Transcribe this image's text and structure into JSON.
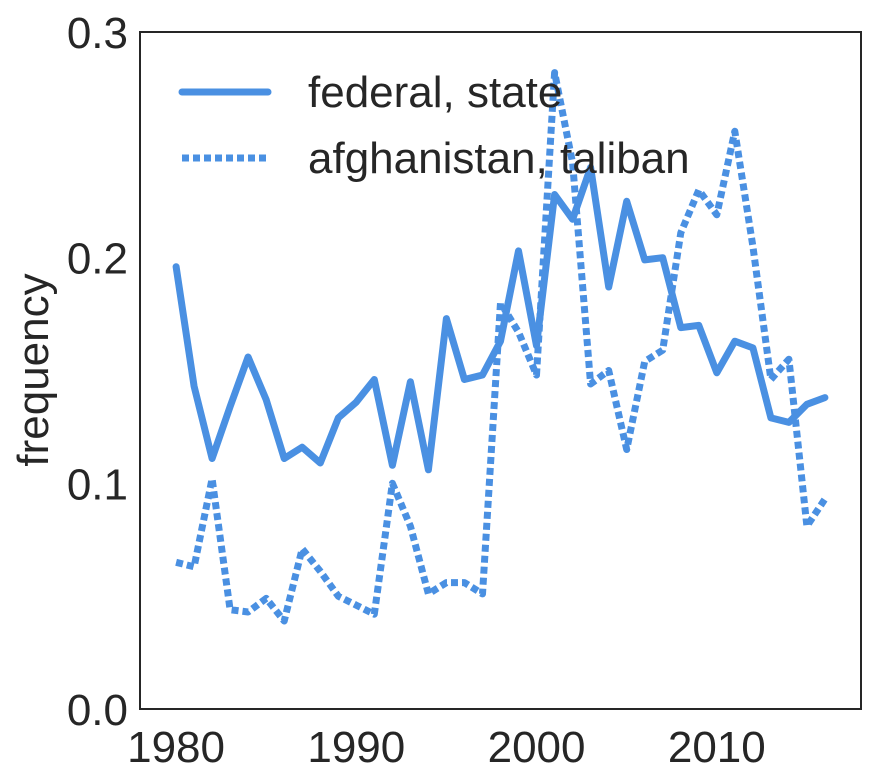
{
  "chart_data": {
    "type": "line",
    "title": "",
    "xlabel": "",
    "ylabel": "frequency",
    "xlim": [
      1978,
      2018
    ],
    "ylim": [
      0.0,
      0.3
    ],
    "xticks": [
      1980,
      1990,
      2000,
      2010
    ],
    "yticks": [
      0.0,
      0.1,
      0.2,
      0.3
    ],
    "xtick_labels": [
      "1980",
      "1990",
      "2000",
      "2010"
    ],
    "ytick_labels": [
      "0.0",
      "0.1",
      "0.2",
      "0.3"
    ],
    "grid": false,
    "legend_position": "top-left",
    "series": [
      {
        "name": "federal, state",
        "style": "solid",
        "color": "#4a90e2",
        "x": [
          1980,
          1981,
          1982,
          1983,
          1984,
          1985,
          1986,
          1987,
          1988,
          1989,
          1990,
          1991,
          1992,
          1993,
          1994,
          1995,
          1996,
          1997,
          1998,
          1999,
          2000,
          2001,
          2002,
          2003,
          2004,
          2005,
          2006,
          2007,
          2008,
          2009,
          2010,
          2011,
          2012,
          2013,
          2014,
          2015,
          2016
        ],
        "y": [
          0.196,
          0.143,
          0.111,
          0.134,
          0.156,
          0.137,
          0.111,
          0.116,
          0.109,
          0.129,
          0.136,
          0.146,
          0.108,
          0.145,
          0.106,
          0.173,
          0.146,
          0.148,
          0.163,
          0.203,
          0.161,
          0.228,
          0.217,
          0.24,
          0.187,
          0.225,
          0.199,
          0.2,
          0.169,
          0.17,
          0.149,
          0.163,
          0.16,
          0.129,
          0.127,
          0.135,
          0.138
        ]
      },
      {
        "name": "afghanistan, taliban",
        "style": "dotted",
        "color": "#4a90e2",
        "x": [
          1980,
          1981,
          1982,
          1983,
          1984,
          1985,
          1986,
          1987,
          1988,
          1989,
          1990,
          1991,
          1992,
          1993,
          1994,
          1995,
          1996,
          1997,
          1998,
          1999,
          2000,
          2001,
          2002,
          2003,
          2004,
          2005,
          2006,
          2007,
          2008,
          2009,
          2010,
          2011,
          2012,
          2013,
          2014,
          2015,
          2016
        ],
        "y": [
          0.065,
          0.063,
          0.102,
          0.044,
          0.043,
          0.049,
          0.039,
          0.071,
          0.061,
          0.05,
          0.046,
          0.042,
          0.1,
          0.081,
          0.051,
          0.056,
          0.056,
          0.051,
          0.18,
          0.167,
          0.148,
          0.282,
          0.242,
          0.144,
          0.15,
          0.115,
          0.154,
          0.159,
          0.211,
          0.23,
          0.219,
          0.256,
          0.205,
          0.146,
          0.155,
          0.081,
          0.093
        ]
      }
    ]
  }
}
